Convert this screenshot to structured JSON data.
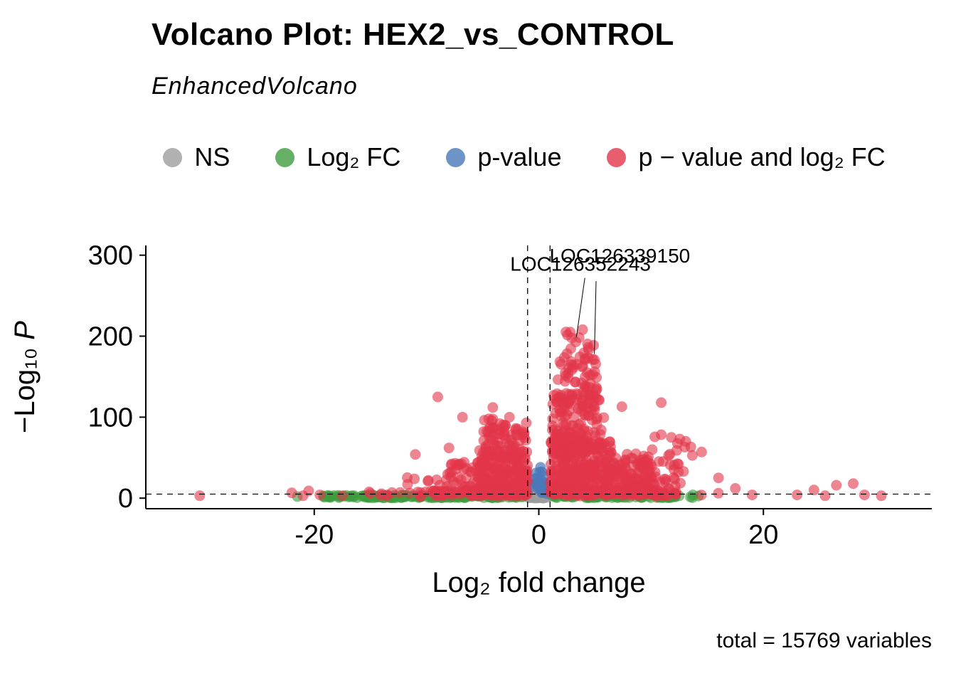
{
  "header": {
    "title": "Volcano Plot: HEX2_vs_CONTROL",
    "subtitle": "EnhancedVolcano"
  },
  "legend": {
    "items": [
      {
        "key": "ns",
        "label": "NS"
      },
      {
        "key": "fc",
        "label": "Log₂ FC"
      },
      {
        "key": "p",
        "label": "p-value"
      },
      {
        "key": "both",
        "label": "p − value and log₂ FC"
      }
    ]
  },
  "chart_data": {
    "type": "scatter",
    "title": "Volcano Plot: HEX2_vs_CONTROL",
    "subtitle": "EnhancedVolcano",
    "xlabel": "Log₂ fold change",
    "ylabel": "−Log₁₀ P",
    "ylabel_parts": {
      "prefix": "−Log₁₀ ",
      "italic": "P"
    },
    "caption": "total = 15769 variables",
    "total_variables": 15769,
    "xlim": [
      -35,
      35
    ],
    "ylim": [
      -13,
      312
    ],
    "x_ticks": [
      -20,
      0,
      20
    ],
    "y_ticks": [
      0,
      100,
      200,
      300
    ],
    "grid": false,
    "legend_position": "top",
    "legend_labels": [
      "NS",
      "Log₂ FC",
      "p-value",
      "p − value and log₂ FC"
    ],
    "thresholds": {
      "log2fc_cutoffs": [
        -1,
        1
      ],
      "pvalue_cutoff_neglog10": 5
    },
    "colors": {
      "ns": "#9E9E9E",
      "fc": "#3E9C3E",
      "p": "#4A78B8",
      "both": "#E3364A"
    },
    "annotations": [
      {
        "label": "LOC126339150",
        "text_xy": [
          0.95,
          291
        ],
        "line": [
          [
            4.1,
            272
          ],
          [
            3.35,
            199
          ]
        ],
        "point_xy": [
          3.3,
          193
        ]
      },
      {
        "label": "LOC126352243",
        "text_xy": [
          -2.55,
          281
        ],
        "line": [
          [
            5.1,
            268
          ],
          [
            4.95,
            178
          ]
        ],
        "point_xy": [
          4.95,
          171
        ]
      }
    ],
    "clusters": [
      {
        "group": "ns",
        "n": 60,
        "x": [
          -1,
          1
        ],
        "y": [
          0,
          4.5
        ]
      },
      {
        "group": "ns",
        "n": 18,
        "x": [
          -0.6,
          0.6
        ],
        "y": [
          0,
          2
        ]
      },
      {
        "group": "fc",
        "n": 150,
        "x": [
          -19.5,
          -1.2
        ],
        "y": [
          0.4,
          3.6
        ]
      },
      {
        "group": "fc",
        "n": 75,
        "x": [
          1.2,
          12.5
        ],
        "y": [
          0.4,
          3.4
        ]
      },
      {
        "group": "fc",
        "n": 18,
        "x": [
          -15,
          14.5
        ],
        "y": [
          0.3,
          4.2
        ]
      },
      {
        "group": "p",
        "n": 22,
        "x": [
          -0.85,
          0.85
        ],
        "y": [
          5,
          22
        ],
        "ypow": 1.6
      },
      {
        "group": "p",
        "n": 6,
        "x": [
          -0.4,
          0.5
        ],
        "y": [
          20,
          36
        ]
      },
      {
        "group": "both",
        "n": 300,
        "x": [
          1,
          6.5
        ],
        "y": [
          5,
          70
        ],
        "ypow": 1.4
      },
      {
        "group": "both",
        "n": 150,
        "x": [
          1.2,
          5.8
        ],
        "y": [
          55,
          130
        ],
        "ypow": 1.3
      },
      {
        "group": "both",
        "n": 60,
        "x": [
          1.5,
          5.2
        ],
        "y": [
          115,
          175
        ],
        "ypow": 1.2
      },
      {
        "group": "both",
        "n": 14,
        "x": [
          2,
          5
        ],
        "y": [
          160,
          212
        ]
      },
      {
        "group": "both",
        "n": 150,
        "x": [
          6,
          10.5
        ],
        "y": [
          5,
          55
        ],
        "ypow": 1.5
      },
      {
        "group": "both",
        "n": 40,
        "x": [
          8.5,
          13
        ],
        "y": [
          5,
          48
        ]
      },
      {
        "group": "both",
        "n": 12,
        "x": [
          9.5,
          14
        ],
        "y": [
          40,
          80
        ]
      },
      {
        "group": "both",
        "n": 220,
        "x": [
          -5.5,
          -1
        ],
        "y": [
          5,
          60
        ],
        "ypow": 1.4
      },
      {
        "group": "both",
        "n": 80,
        "x": [
          -5,
          -1.1
        ],
        "y": [
          50,
          100
        ],
        "ypow": 1.3
      },
      {
        "group": "both",
        "n": 50,
        "x": [
          -8.2,
          -4.5
        ],
        "y": [
          5,
          45
        ]
      },
      {
        "group": "both",
        "n": 14,
        "x": [
          -12,
          -7.5
        ],
        "y": [
          5,
          35
        ]
      },
      {
        "group": "both",
        "n": 70,
        "x": [
          1,
          12
        ],
        "y": [
          3,
          10
        ]
      },
      {
        "group": "both",
        "n": 70,
        "x": [
          -10,
          -1
        ],
        "y": [
          3,
          10
        ]
      },
      {
        "group": "both",
        "n": 20,
        "x": [
          2,
          16
        ],
        "y": [
          2,
          8
        ]
      },
      {
        "group": "both",
        "n": 20,
        "x": [
          -16,
          -1.2
        ],
        "y": [
          2,
          8
        ]
      }
    ],
    "extra_points": {
      "ns": [],
      "fc": [
        [
          -21.5,
          2
        ],
        [
          13.5,
          1.5
        ],
        [
          14.2,
          2.6
        ]
      ],
      "p": [
        [
          0.15,
          38
        ],
        [
          -0.25,
          31
        ],
        [
          0.4,
          27
        ]
      ],
      "both": [
        [
          -30.2,
          3
        ],
        [
          -22,
          6.5
        ],
        [
          -21,
          3
        ],
        [
          -20.5,
          9
        ],
        [
          -19.5,
          4
        ],
        [
          -17.5,
          3
        ],
        [
          -15,
          6
        ],
        [
          -13.5,
          4
        ],
        [
          -9,
          125
        ],
        [
          -8,
          62
        ],
        [
          -11,
          54
        ],
        [
          -6.8,
          100
        ],
        [
          -4.1,
          112
        ],
        [
          7.4,
          113
        ],
        [
          10.9,
          118
        ],
        [
          11.8,
          75
        ],
        [
          13,
          63
        ],
        [
          14.5,
          57
        ],
        [
          16,
          25
        ],
        [
          17.5,
          12
        ],
        [
          19,
          4
        ],
        [
          23,
          4
        ],
        [
          24.5,
          10
        ],
        [
          25.5,
          3
        ],
        [
          26.5,
          16
        ],
        [
          28,
          18
        ],
        [
          29,
          4
        ],
        [
          30.5,
          3
        ],
        [
          3.3,
          193
        ],
        [
          4.95,
          171
        ],
        [
          2.8,
          205
        ],
        [
          3.9,
          208
        ],
        [
          4.4,
          186
        ]
      ]
    }
  }
}
